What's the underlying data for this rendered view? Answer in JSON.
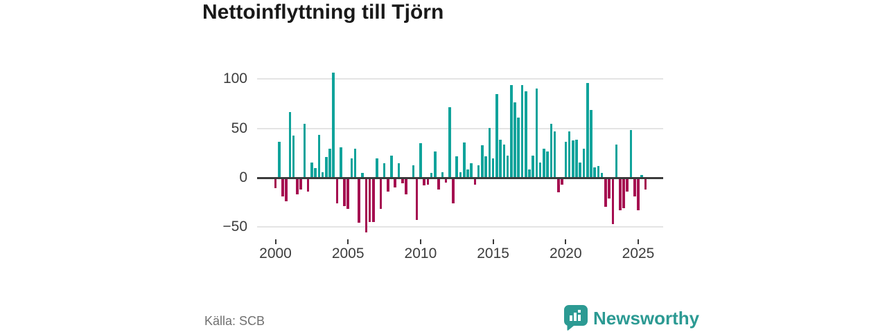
{
  "title": "Nettoinflyttning till Tjörn",
  "source": "Källa: SCB",
  "branding": {
    "name": "Newsworthy",
    "logo_icon": "bar-chart-speech-bubble-icon",
    "color": "#2c9a93"
  },
  "colors": {
    "positive_bar": "#10a39b",
    "negative_bar": "#a50e50",
    "axis_line": "#3b3b3b",
    "gridline": "#e4e4e4",
    "axis_text": "#3d3d3d",
    "muted_text": "#707070",
    "title_text": "#191919"
  },
  "chart_data": {
    "type": "bar",
    "title": "Nettoinflyttning till Tjörn",
    "xlabel": "",
    "ylabel": "",
    "legend": "none",
    "grid": "horizontal",
    "frequency": "quarterly",
    "start_year": 2000,
    "x_tick_labels": [
      "2000",
      "2005",
      "2010",
      "2015",
      "2020",
      "2025"
    ],
    "y_ticks": [
      {
        "v": 100,
        "label": "100"
      },
      {
        "v": 50,
        "label": "50"
      },
      {
        "v": 0,
        "label": "0"
      },
      {
        "v": -50,
        "label": "−50"
      }
    ],
    "ylim": [
      -58,
      110
    ],
    "values": [
      -10,
      36,
      -18,
      -23,
      66,
      42,
      -16,
      -11,
      54,
      -13,
      15,
      9,
      43,
      5,
      20,
      29,
      106,
      -25,
      30,
      -28,
      -31,
      19,
      29,
      -45,
      4,
      -55,
      -44,
      -44,
      19,
      -31,
      14,
      -13,
      22,
      -9,
      14,
      -5,
      -16,
      -1,
      12,
      -42,
      34,
      -7,
      -6,
      4,
      26,
      -11,
      5,
      -4,
      71,
      -25,
      21,
      5,
      35,
      8,
      14,
      -6,
      12,
      32,
      21,
      50,
      19,
      84,
      38,
      33,
      22,
      93,
      76,
      60,
      93,
      87,
      8,
      22,
      90,
      15,
      29,
      26,
      54,
      46,
      -14,
      -6,
      36,
      46,
      37,
      38,
      15,
      29,
      95,
      68,
      10,
      11,
      4,
      -29,
      -20,
      -46,
      33,
      -32,
      -30,
      -13,
      48,
      -18,
      -32,
      2,
      -11
    ]
  }
}
